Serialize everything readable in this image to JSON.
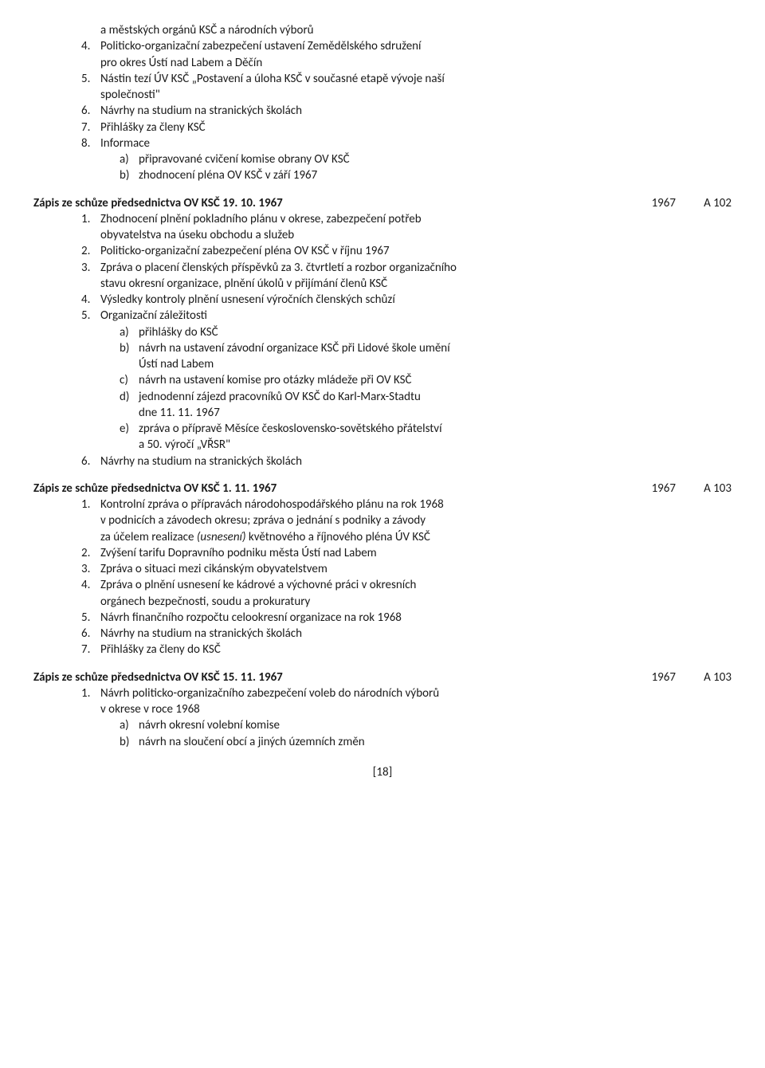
{
  "lead": {
    "items": [
      {
        "n": "",
        "lines": [
          "a městských orgánů KSČ a národních výborů"
        ]
      },
      {
        "n": "4.",
        "lines": [
          "Politicko-organizační zabezpečení ustavení Zemědělského sdružení",
          "pro okres Ústí nad Labem a Děčín"
        ]
      },
      {
        "n": "5.",
        "lines": [
          "Nástin tezí ÚV KSČ „Postavení a úloha KSČ v současné etapě vývoje naší",
          "společnosti\""
        ]
      },
      {
        "n": "6.",
        "lines": [
          "Návrhy na studium na stranických školách"
        ]
      },
      {
        "n": "7.",
        "lines": [
          "Přihlášky za členy KSČ"
        ]
      },
      {
        "n": "8.",
        "lines": [
          "Informace"
        ],
        "alpha": [
          {
            "m": "a)",
            "t": "připravované cvičení komise obrany OV KSČ"
          },
          {
            "m": "b)",
            "t": "zhodnocení pléna OV KSČ v září 1967"
          }
        ]
      }
    ]
  },
  "s1": {
    "title": "Zápis ze schůze předsednictva OV KSČ 19. 10. 1967",
    "year": "1967",
    "ref": "A 102",
    "items": [
      {
        "n": "1.",
        "lines": [
          "Zhodnocení plnění pokladního plánu v okrese, zabezpečení potřeb",
          "obyvatelstva na úseku obchodu a služeb"
        ]
      },
      {
        "n": "2.",
        "lines": [
          "Politicko-organizační zabezpečení pléna OV KSČ v říjnu 1967"
        ]
      },
      {
        "n": "3.",
        "lines": [
          "Zpráva o placení členských příspěvků za 3. čtvrtletí a rozbor organizačního",
          "stavu okresní organizace, plnění úkolů v přijímání členů KSČ"
        ]
      },
      {
        "n": "4.",
        "lines": [
          "Výsledky kontroly plnění usnesení výročních členských schůzí"
        ]
      },
      {
        "n": "5.",
        "lines": [
          "Organizační záležitosti"
        ],
        "alpha": [
          {
            "m": "a)",
            "t": "přihlášky do KSČ"
          },
          {
            "m": "b)",
            "t": "návrh na ustavení závodní organizace KSČ při Lidové škole umění",
            "t2": "Ústí nad Labem"
          },
          {
            "m": "c)",
            "t": "návrh na ustavení komise pro otázky mládeže při OV KSČ"
          },
          {
            "m": "d)",
            "t": "jednodenní zájezd pracovníků OV KSČ do Karl-Marx-Stadtu",
            "t2": "dne 11. 11. 1967"
          },
          {
            "m": "e)",
            "t": "zpráva o přípravě Měsíce československo-sovětského přátelství",
            "t2": "a 50. výročí „VŘSR\""
          }
        ]
      },
      {
        "n": "6.",
        "lines": [
          "Návrhy na studium na stranických školách"
        ]
      }
    ]
  },
  "s2": {
    "title": "Zápis ze schůze předsednictva OV KSČ 1. 11. 1967",
    "year": "1967",
    "ref": "A 103",
    "items": [
      {
        "n": "1.",
        "lines": [
          "Kontrolní zpráva o přípravách národohospodářského plánu na rok 1968",
          "v podnicích a závodech okresu; zpráva o jednání s podniky a závody"
        ],
        "line3_pre": "za účelem realizace ",
        "line3_it": "(usnesení)",
        "line3_post": " květnového a říjnového pléna ÚV KSČ"
      },
      {
        "n": "2.",
        "lines": [
          "Zvýšení tarifu Dopravního podniku města Ústí nad Labem"
        ]
      },
      {
        "n": "3.",
        "lines": [
          "Zpráva o situaci mezi cikánským obyvatelstvem"
        ]
      },
      {
        "n": "4.",
        "lines": [
          "Zpráva o plnění usnesení ke kádrové a výchovné práci v okresních",
          "orgánech bezpečnosti, soudu a prokuratury"
        ]
      },
      {
        "n": "5.",
        "lines": [
          "Návrh finančního rozpočtu celookresní organizace na rok 1968"
        ]
      },
      {
        "n": "6.",
        "lines": [
          "Návrhy na studium na stranických školách"
        ]
      },
      {
        "n": "7.",
        "lines": [
          "Přihlášky za členy do KSČ"
        ]
      }
    ]
  },
  "s3": {
    "title": "Zápis ze schůze předsednictva OV KSČ 15. 11. 1967",
    "year": "1967",
    "ref": "A 103",
    "items": [
      {
        "n": "1.",
        "lines": [
          "Návrh politicko-organizačního zabezpečení voleb do národních výborů",
          "v okrese v roce 1968"
        ],
        "alpha": [
          {
            "m": "a)",
            "t": "návrh okresní volební komise"
          },
          {
            "m": "b)",
            "t": "návrh na sloučení obcí a jiných územních změn"
          }
        ]
      }
    ]
  },
  "pagenum": "[18]"
}
